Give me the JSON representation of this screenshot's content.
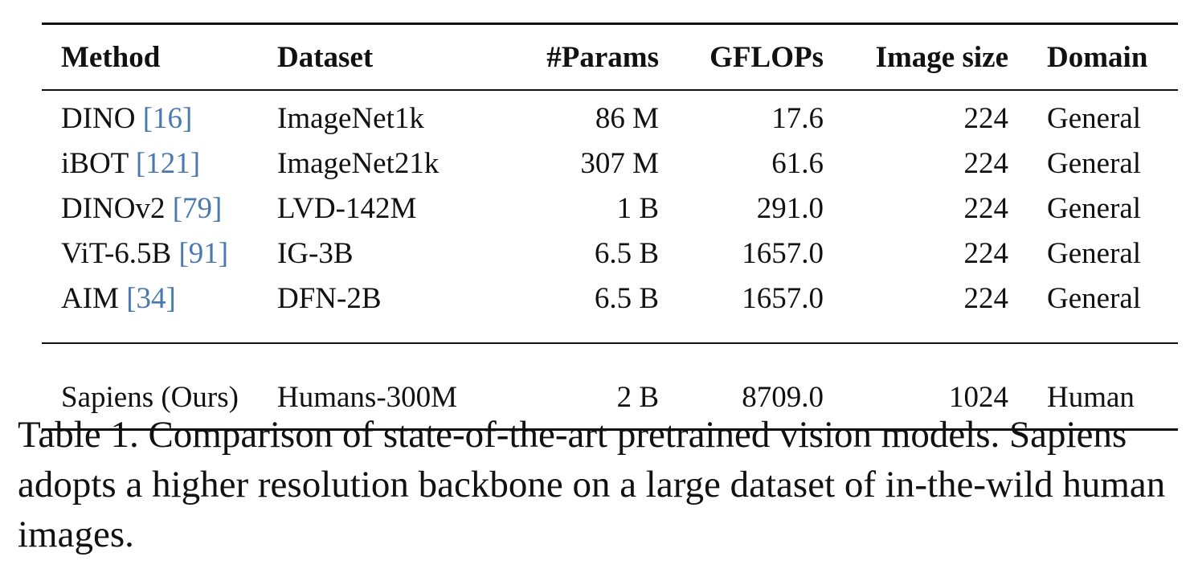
{
  "table": {
    "headers": {
      "method": "Method",
      "dataset": "Dataset",
      "params": "#Params",
      "gflops": "GFLOPs",
      "image_size": "Image size",
      "domain": "Domain"
    },
    "rows": [
      {
        "method": "DINO",
        "cite": "[16]",
        "dataset": "ImageNet1k",
        "params": "86 M",
        "gflops": "17.6",
        "image_size": "224",
        "domain": "General"
      },
      {
        "method": "iBOT",
        "cite": "[121]",
        "dataset": "ImageNet21k",
        "params": "307 M",
        "gflops": "61.6",
        "image_size": "224",
        "domain": "General"
      },
      {
        "method": "DINOv2",
        "cite": "[79]",
        "dataset": "LVD-142M",
        "params": "1 B",
        "gflops": "291.0",
        "image_size": "224",
        "domain": "General"
      },
      {
        "method": "ViT-6.5B",
        "cite": "[91]",
        "dataset": "IG-3B",
        "params": "6.5 B",
        "gflops": "1657.0",
        "image_size": "224",
        "domain": "General"
      },
      {
        "method": "AIM",
        "cite": "[34]",
        "dataset": "DFN-2B",
        "params": "6.5 B",
        "gflops": "1657.0",
        "image_size": "224",
        "domain": "General"
      }
    ],
    "ours": {
      "method": "Sapiens (Ours)",
      "dataset": "Humans-300M",
      "params": "2 B",
      "gflops": "8709.0",
      "image_size": "1024",
      "domain": "Human"
    }
  },
  "caption": "Table 1. Comparison of state-of-the-art pretrained vision models. Sapiens adopts a higher resolution backbone on a large dataset of in-the-wild human images.",
  "colors": {
    "citation": "#4a78b0",
    "text": "#111111"
  }
}
